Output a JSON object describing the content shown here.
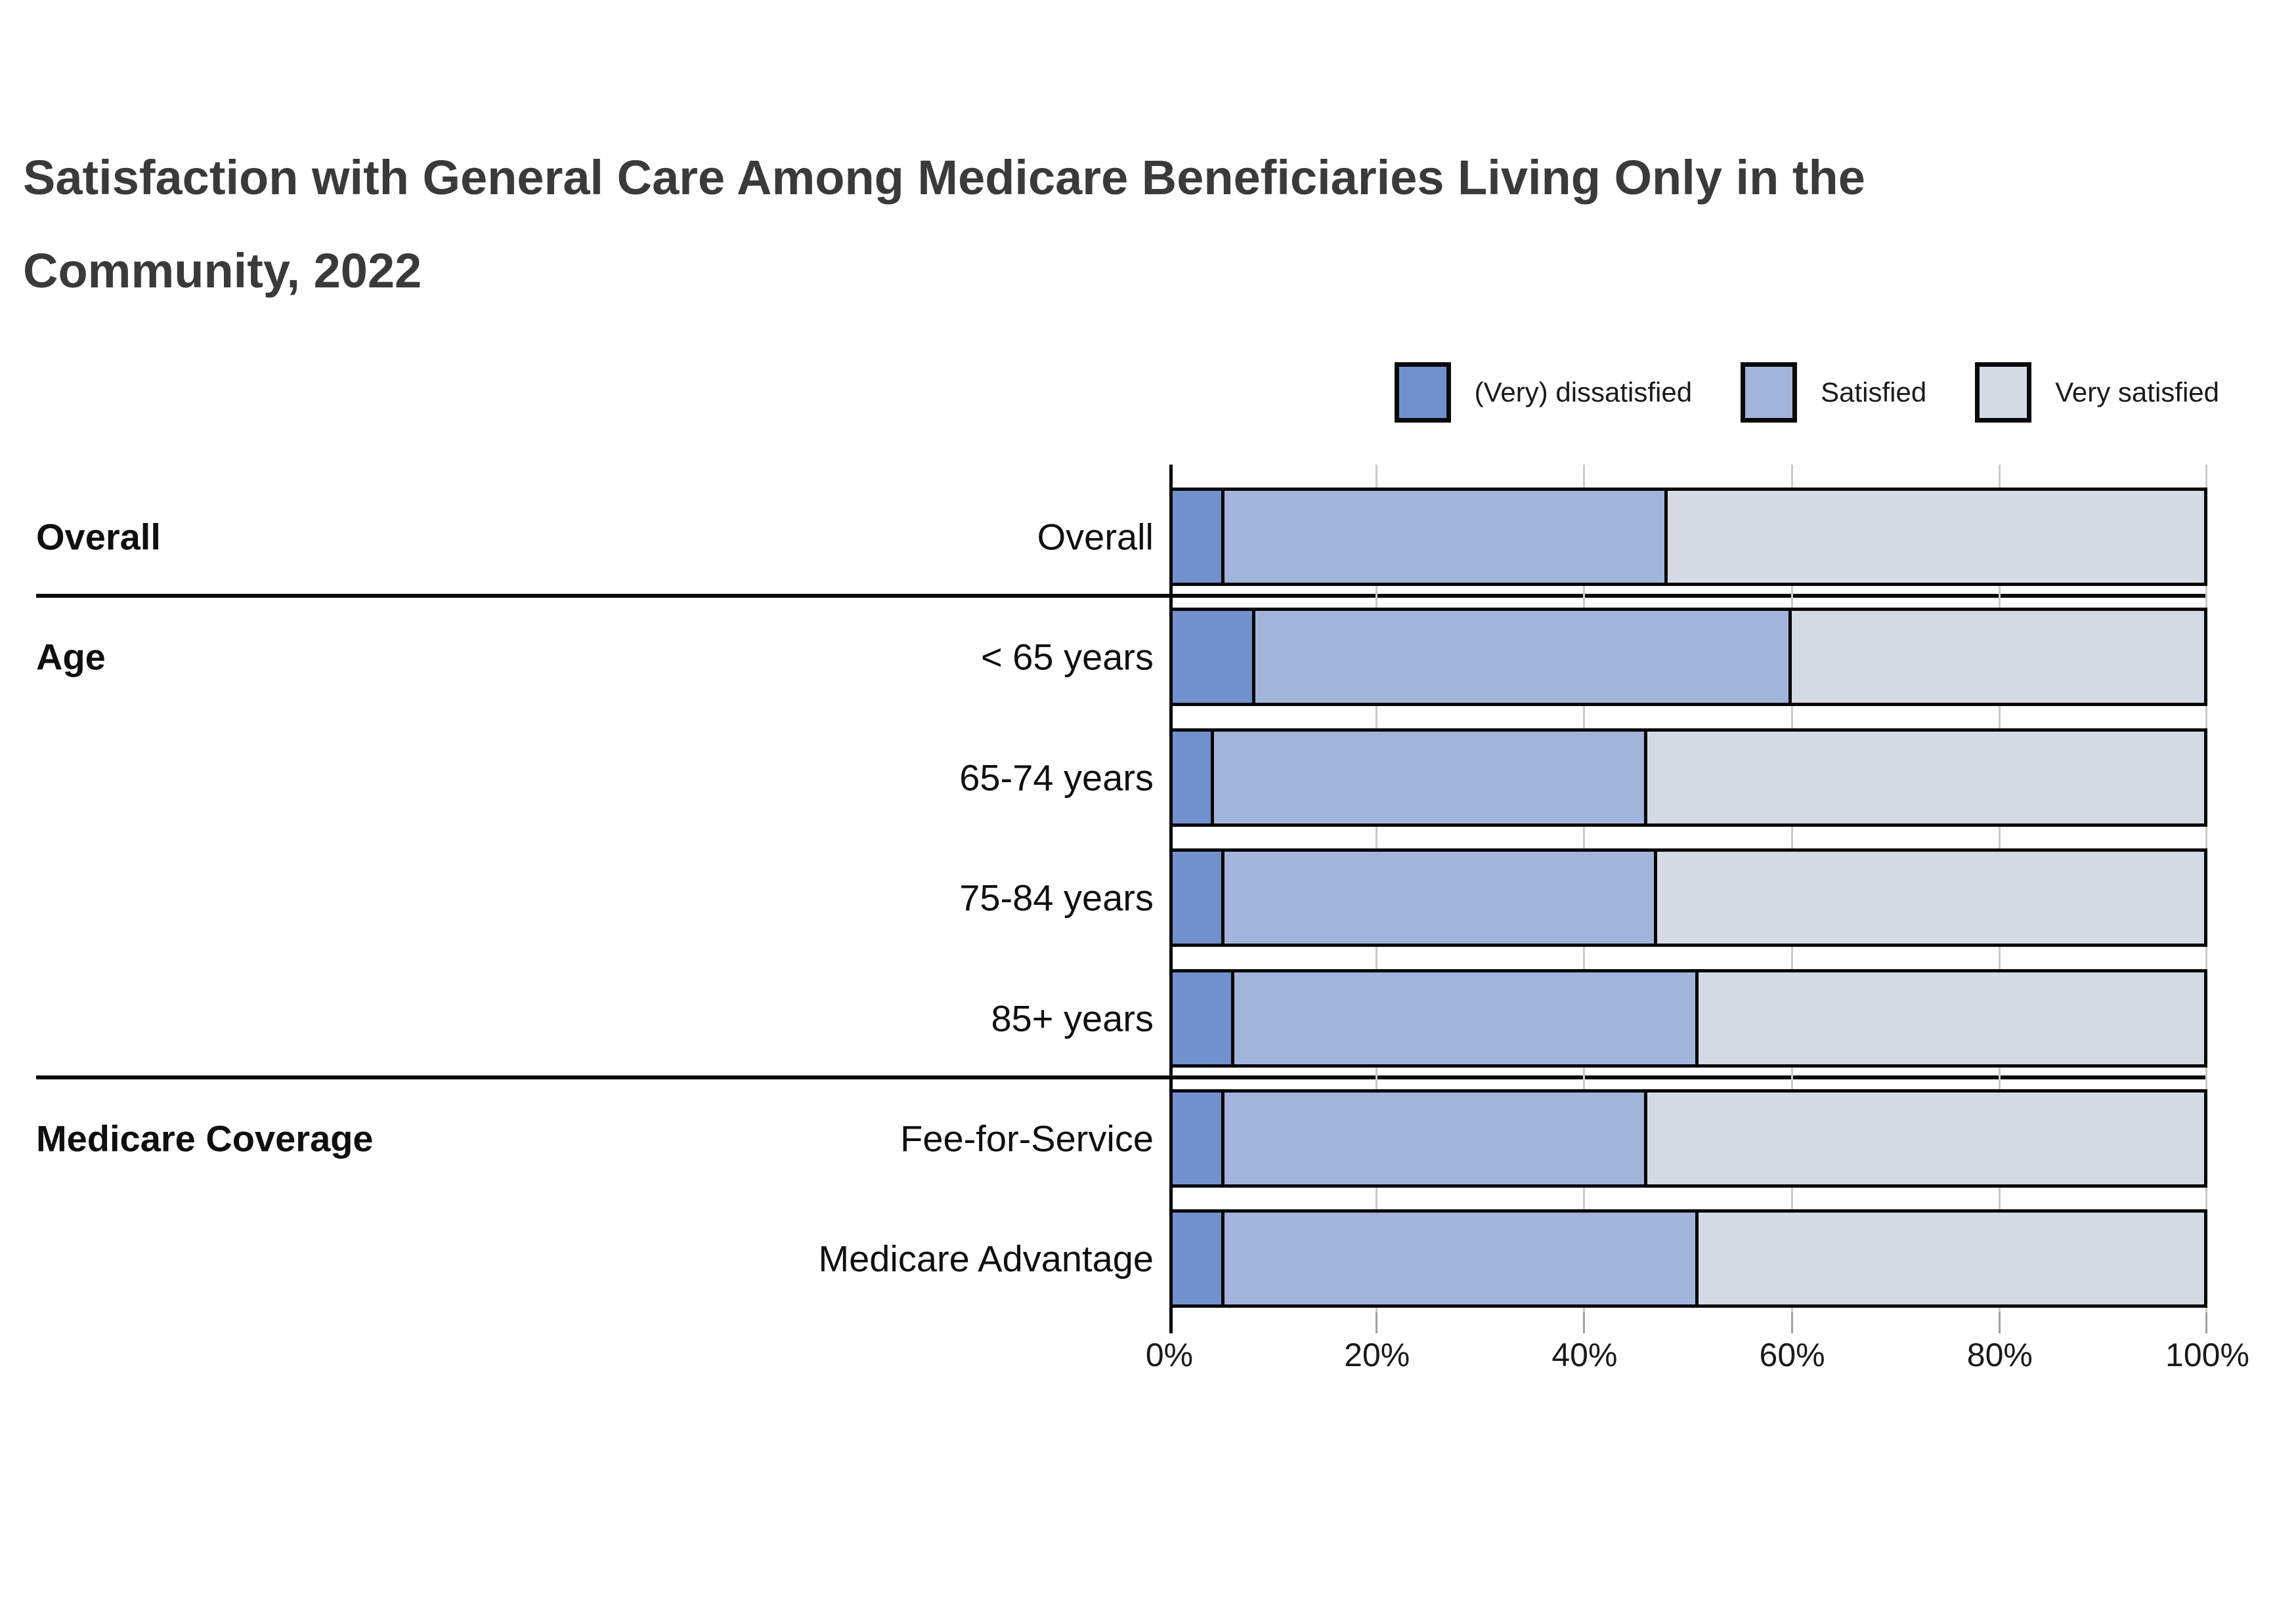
{
  "title_lines": [
    "Satisfaction with General Care Among Medicare Beneficiaries Living Only in the",
    "Community, 2022"
  ],
  "legend": {
    "items": [
      {
        "label": "(Very) dissatisfied",
        "color": "#7191ce"
      },
      {
        "label": "Satisfied",
        "color": "#a2b4da"
      },
      {
        "label": "Very satisfied",
        "color": "#d5dbe4"
      }
    ]
  },
  "chart_data": {
    "type": "bar",
    "orientation": "horizontal",
    "stacked": true,
    "title": "Satisfaction with General Care Among Medicare Beneficiaries Living Only in the Community, 2022",
    "unit": "%",
    "xlim": [
      0,
      100
    ],
    "x_ticks": [
      "0%",
      "20%",
      "40%",
      "60%",
      "80%",
      "100%"
    ],
    "grid": true,
    "legend_position": "top-right",
    "series_names": [
      "(Very) dissatisfied",
      "Satisfied",
      "Very satisfied"
    ],
    "groups": [
      {
        "label": "Overall"
      },
      {
        "label": "Age"
      },
      {
        "label": "Medicare Coverage"
      }
    ],
    "rows": [
      {
        "group": "Overall",
        "label": "Overall",
        "values": [
          5,
          43,
          52
        ]
      },
      {
        "group": "Age",
        "label": "< 65 years",
        "values": [
          8,
          52,
          40
        ]
      },
      {
        "group": "Age",
        "label": "65-74 years",
        "values": [
          4,
          42,
          54
        ]
      },
      {
        "group": "Age",
        "label": "75-84 years",
        "values": [
          5,
          42,
          53
        ]
      },
      {
        "group": "Age",
        "label": "85+ years",
        "values": [
          6,
          45,
          49
        ]
      },
      {
        "group": "Medicare Coverage",
        "label": "Fee-for-Service",
        "values": [
          5,
          41,
          54
        ]
      },
      {
        "group": "Medicare Coverage",
        "label": "Medicare Advantage",
        "values": [
          5,
          46,
          49
        ]
      }
    ]
  },
  "colors": {
    "bar_border": "#050505",
    "gridline": "#cbcbcb",
    "title_text": "#3a3a3a"
  }
}
